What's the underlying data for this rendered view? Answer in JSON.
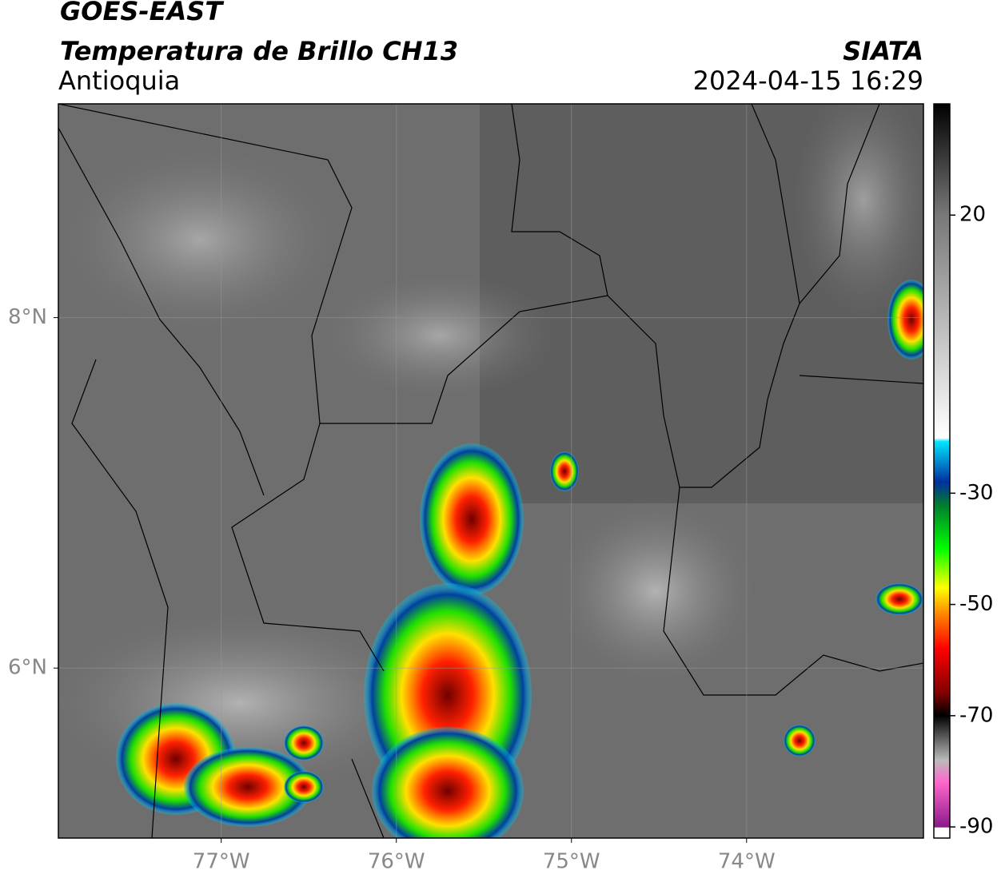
{
  "header": {
    "title": "GOES-EAST",
    "subtitle": "Temperatura de Brillo CH13",
    "region": "Antioquia",
    "source": "SIATA",
    "datetime": "2024-04-15 16:29"
  },
  "map": {
    "xlim": [
      -77.93,
      -72.99
    ],
    "ylim": [
      5.03,
      9.22
    ],
    "xticks": [
      {
        "value": -77,
        "label": "77°W"
      },
      {
        "value": -76,
        "label": "76°W"
      },
      {
        "value": -75,
        "label": "75°W"
      },
      {
        "value": -74,
        "label": "74°W"
      }
    ],
    "yticks": [
      {
        "value": 8,
        "label": "8°N"
      },
      {
        "value": 6,
        "label": "6°N"
      }
    ],
    "grid": true
  },
  "colorbar": {
    "lim": [
      -92,
      40
    ],
    "ticks": [
      20,
      -30,
      -50,
      -70,
      -90
    ]
  }
}
